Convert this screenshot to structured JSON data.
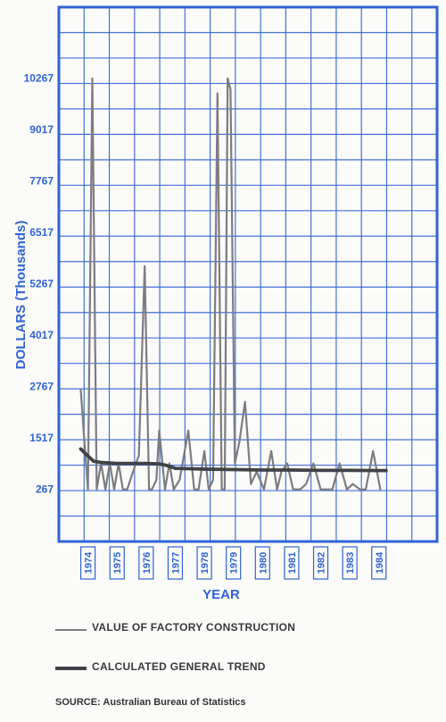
{
  "colors": {
    "grid": "#2f63d6",
    "text": "#2f63d6",
    "series_value": "#7c7c82",
    "series_trend": "#404248"
  },
  "chart_data": {
    "type": "line",
    "title": "",
    "ylabel": "DOLLARS (Thousands)",
    "xlabel": "YEAR",
    "ylim": [
      -1000,
      12000
    ],
    "y_ticks": [
      267,
      1517,
      2767,
      4017,
      5267,
      6517,
      7767,
      9017,
      10267
    ],
    "y_tick_labels": [
      "267",
      "1517",
      "2767",
      "4017",
      "5267",
      "6517",
      "7767",
      "9017",
      "10267"
    ],
    "x_ticks": [
      1974,
      1975,
      1976,
      1977,
      1978,
      1979,
      1980,
      1981,
      1982,
      1983,
      1984
    ],
    "x_tick_labels": [
      "1974",
      "1975",
      "1976",
      "1977",
      "1978",
      "1979",
      "1980",
      "1981",
      "1982",
      "1983",
      "1984"
    ],
    "xlim": [
      1973,
      1986
    ],
    "grid": true,
    "series": [
      {
        "name": "VALUE OF FACTORY CONSTRUCTION",
        "x": [
          1973.75,
          1973.9,
          1974.0,
          1974.15,
          1974.3,
          1974.45,
          1974.6,
          1974.75,
          1974.9,
          1975.05,
          1975.2,
          1975.35,
          1975.55,
          1975.75,
          1975.95,
          1976.1,
          1976.2,
          1976.35,
          1976.45,
          1976.65,
          1976.8,
          1976.95,
          1977.15,
          1977.45,
          1977.65,
          1977.8,
          1978.0,
          1978.15,
          1978.3,
          1978.45,
          1978.6,
          1978.7,
          1978.8,
          1978.9,
          1979.05,
          1979.2,
          1979.4,
          1979.6,
          1979.8,
          1980.05,
          1980.3,
          1980.5,
          1980.65,
          1980.85,
          1981.05,
          1981.3,
          1981.5,
          1981.75,
          1982.0,
          1982.2,
          1982.4,
          1982.65,
          1982.9,
          1983.1,
          1983.35,
          1983.55,
          1983.8,
          1984.05
        ],
        "values": [
          2700,
          1200,
          267,
          10267,
          267,
          900,
          267,
          900,
          267,
          900,
          267,
          267,
          700,
          1100,
          5700,
          267,
          267,
          500,
          1700,
          267,
          900,
          267,
          500,
          1700,
          267,
          267,
          1200,
          267,
          500,
          9900,
          267,
          267,
          10267,
          10000,
          900,
          1400,
          2400,
          400,
          700,
          267,
          1200,
          267,
          700,
          900,
          267,
          267,
          400,
          900,
          267,
          267,
          267,
          900,
          267,
          400,
          267,
          267,
          1200,
          267
        ]
      },
      {
        "name": "CALCULATED GENERAL TREND",
        "x": [
          1973.75,
          1974.0,
          1974.2,
          1974.5,
          1975.0,
          1975.5,
          1976.0,
          1976.45,
          1976.7,
          1977.0,
          1978.0,
          1979.0,
          1980.0,
          1981.0,
          1982.0,
          1983.0,
          1984.0,
          1984.25
        ],
        "values": [
          1250,
          1080,
          950,
          920,
          900,
          900,
          900,
          890,
          850,
          780,
          760,
          750,
          740,
          740,
          730,
          730,
          725,
          725
        ]
      }
    ]
  },
  "legend": {
    "items": [
      {
        "label": "VALUE OF FACTORY CONSTRUCTION"
      },
      {
        "label": "CALCULATED GENERAL TREND"
      }
    ]
  },
  "source": "SOURCE: Australian Bureau of Statistics"
}
